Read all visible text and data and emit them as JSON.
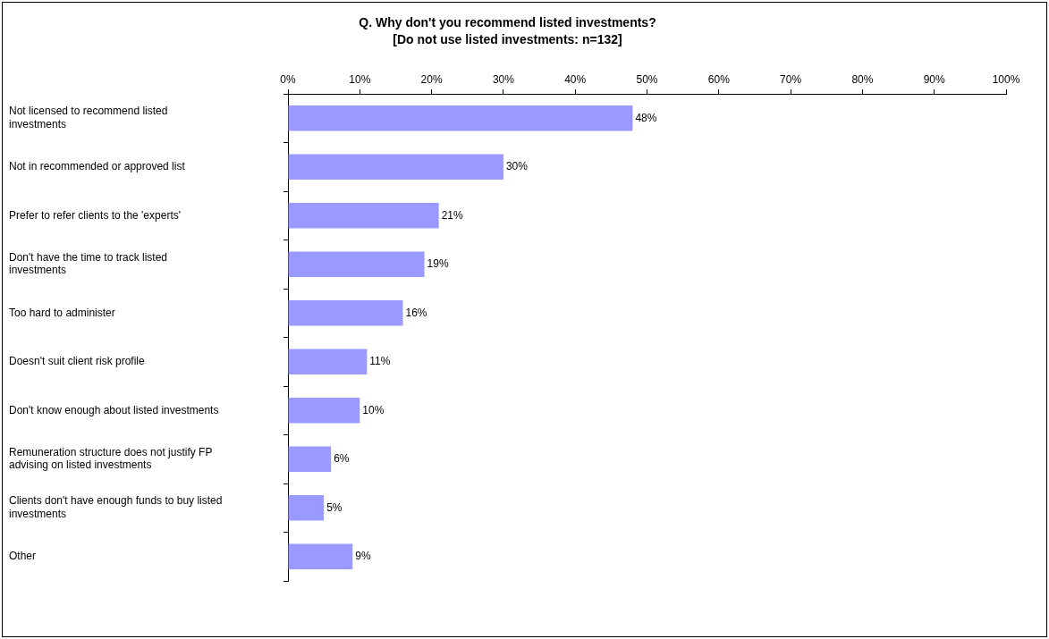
{
  "chart_data": {
    "type": "bar",
    "orientation": "horizontal",
    "title": "Q. Why don't you recommend listed investments?",
    "subtitle": "[Do not use listed investments: n=132]",
    "categories": [
      "Not licensed to recommend listed investments",
      "Not in recommended or approved list",
      "Prefer to refer clients to the 'experts'",
      "Don't have the time to track listed investments",
      "Too hard to administer",
      "Doesn't suit client risk profile",
      "Don't know enough about listed investments",
      "Remuneration structure does not justify FP advising on listed investments",
      "Clients don't have enough funds to buy listed investments",
      "Other"
    ],
    "values": [
      48,
      30,
      21,
      19,
      16,
      11,
      10,
      6,
      5,
      9
    ],
    "value_labels": [
      "48%",
      "30%",
      "21%",
      "19%",
      "16%",
      "11%",
      "10%",
      "6%",
      "5%",
      "9%"
    ],
    "color": "#9999ff",
    "xlim": [
      0,
      100
    ],
    "xticks": [
      {
        "value": 0,
        "label": "0%"
      },
      {
        "value": 10,
        "label": "10%"
      },
      {
        "value": 20,
        "label": "20%"
      },
      {
        "value": 30,
        "label": "30%"
      },
      {
        "value": 40,
        "label": "40%"
      },
      {
        "value": 50,
        "label": "50%"
      },
      {
        "value": 60,
        "label": "60%"
      },
      {
        "value": 70,
        "label": "70%"
      },
      {
        "value": 80,
        "label": "80%"
      },
      {
        "value": 90,
        "label": "90%"
      },
      {
        "value": 100,
        "label": "100%"
      }
    ],
    "grid": false,
    "legend": false
  }
}
